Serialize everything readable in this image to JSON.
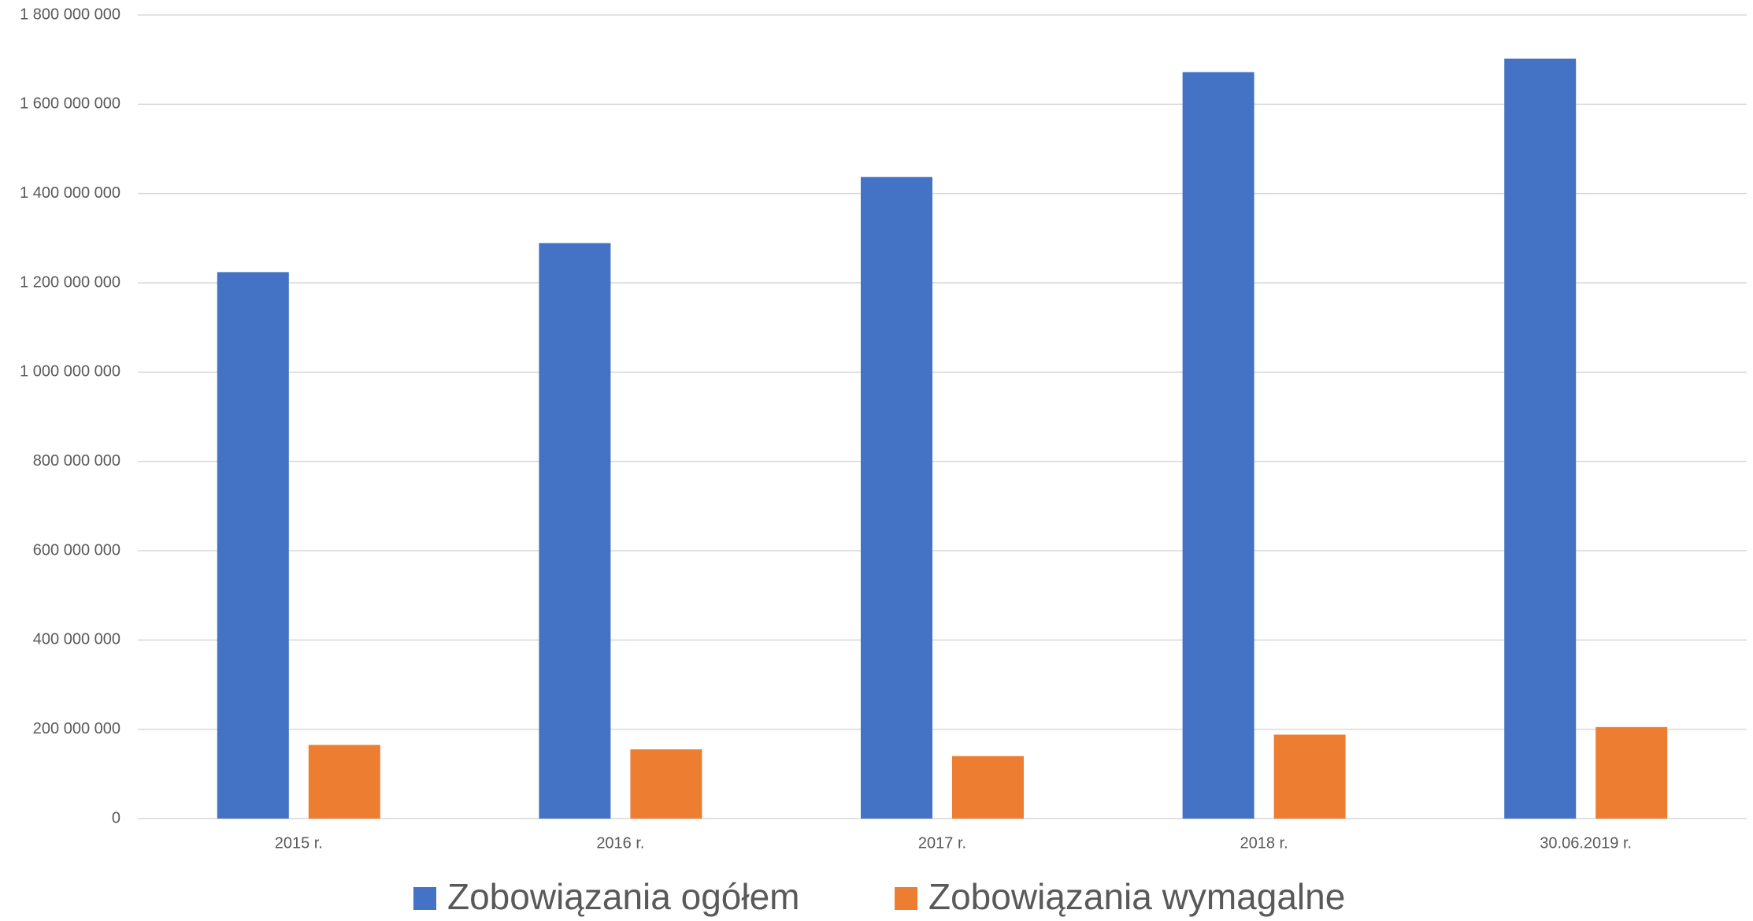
{
  "chart_data": {
    "type": "bar",
    "categories": [
      "2015 r.",
      "2016 r.",
      "2017 r.",
      "2018 r.",
      "30.06.2019 r."
    ],
    "series": [
      {
        "name": "Zobowiązania ogółem",
        "color": "#4472c4",
        "values": [
          1224000000,
          1289000000,
          1437000000,
          1672000000,
          1702000000
        ]
      },
      {
        "name": "Zobowiązania wymagalne",
        "color": "#ed7d31",
        "values": [
          165000000,
          155000000,
          140000000,
          188000000,
          205000000
        ]
      }
    ],
    "ylim": [
      0,
      1800000000
    ],
    "yticks": [
      0,
      {
        "value": 200000000,
        "label": "200 000 000"
      },
      {
        "value": 400000000,
        "label": "400 000 000"
      },
      {
        "value": 600000000,
        "label": "600 000 000"
      },
      {
        "value": 800000000,
        "label": "800 000 000"
      },
      {
        "value": 1000000000,
        "label": "1 000 000 000"
      },
      {
        "value": 1200000000,
        "label": "1 200 000 000"
      },
      {
        "value": 1400000000,
        "label": "1 400 000 000"
      },
      {
        "value": 1600000000,
        "label": "1 600 000 000"
      },
      {
        "value": 1800000000,
        "label": "1 800 000 000"
      }
    ],
    "grid": true,
    "legend": "bottom"
  }
}
